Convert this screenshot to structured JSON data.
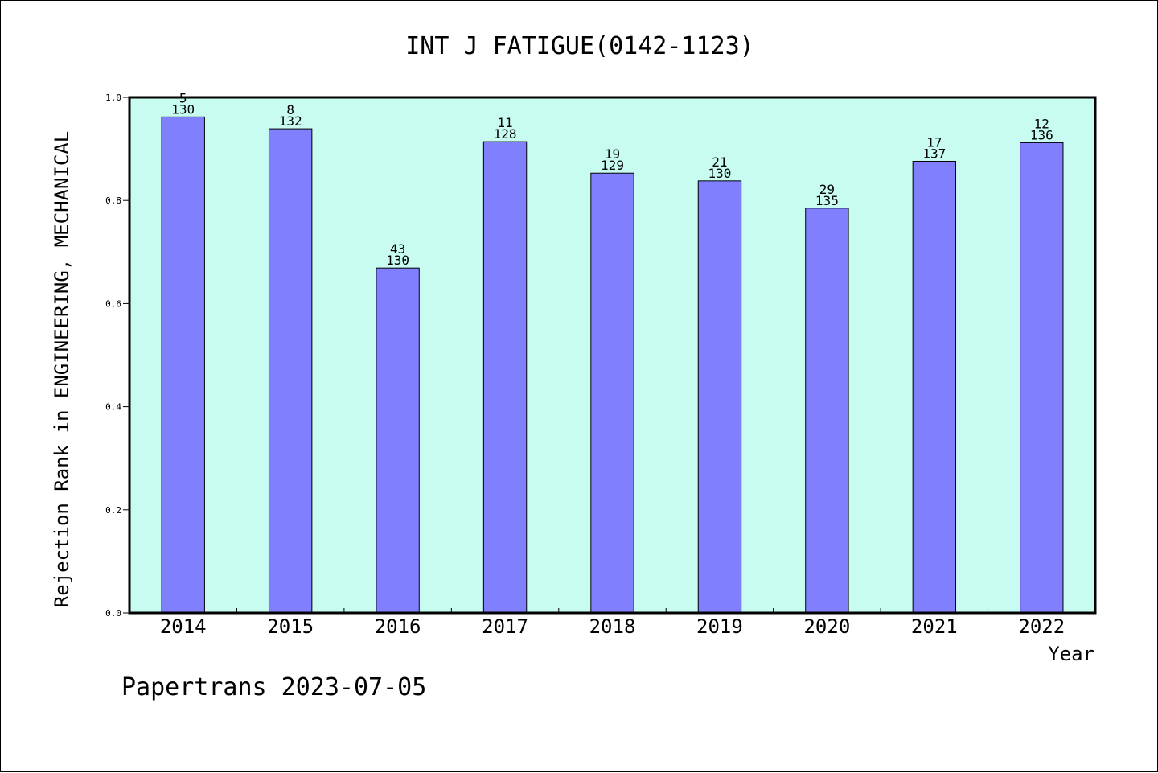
{
  "chart_data": {
    "type": "bar",
    "title": "INT J FATIGUE(0142-1123)",
    "xlabel": "Year",
    "ylabel": "Rejection Rank in ENGINEERING, MECHANICAL",
    "ylim": [
      0,
      1.0
    ],
    "yticks": [
      "0.0",
      "0.2",
      "0.4",
      "0.6",
      "0.8",
      "1.0"
    ],
    "categories": [
      "2014",
      "2015",
      "2016",
      "2017",
      "2018",
      "2019",
      "2020",
      "2021",
      "2022"
    ],
    "values": [
      0.962,
      0.939,
      0.669,
      0.914,
      0.853,
      0.838,
      0.785,
      0.876,
      0.912
    ],
    "rank_labels": [
      "5",
      "8",
      "43",
      "11",
      "19",
      "21",
      "29",
      "17",
      "12"
    ],
    "total_labels": [
      "130",
      "132",
      "130",
      "128",
      "129",
      "130",
      "135",
      "137",
      "136"
    ],
    "grid": false,
    "legend": "none",
    "colors": {
      "plot_background": "#c8fcf0",
      "bar_fill": "#8080ff",
      "bar_stroke": "#000000"
    }
  },
  "footer": {
    "text": "Papertrans 2023-07-05"
  }
}
